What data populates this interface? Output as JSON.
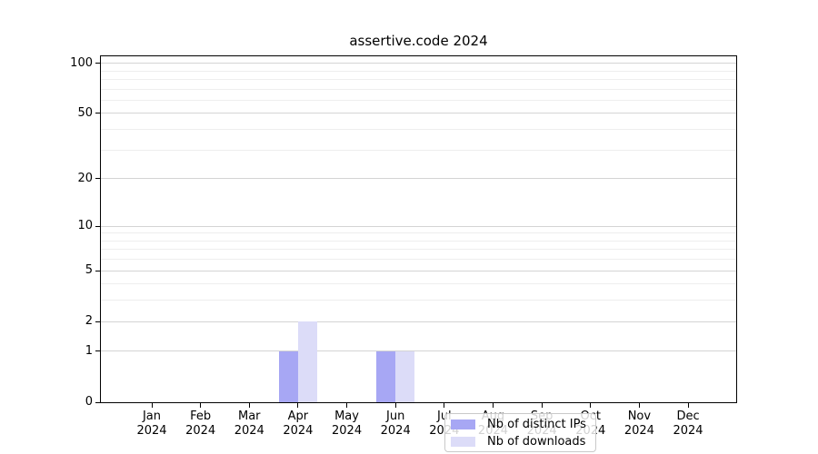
{
  "chart_data": {
    "type": "bar",
    "title": "assertive.code 2024",
    "categories": [
      "Jan",
      "Feb",
      "Mar",
      "Apr",
      "May",
      "Jun",
      "Jul",
      "Aug",
      "Sep",
      "Oct",
      "Nov",
      "Dec"
    ],
    "x_year": "2024",
    "series": [
      {
        "name": "Nb of distinct IPs",
        "color": "#a7a7f4",
        "values": [
          0,
          0,
          0,
          1,
          0,
          1,
          0,
          0,
          0,
          0,
          0,
          0
        ]
      },
      {
        "name": "Nb of downloads",
        "color": "#dcdcf8",
        "values": [
          0,
          0,
          0,
          2,
          0,
          1,
          0,
          0,
          0,
          0,
          0,
          0
        ]
      }
    ],
    "y_axis": {
      "scale": "log1p",
      "ylim": [
        0,
        110
      ],
      "ticks_major": [
        0,
        1,
        2,
        5,
        10,
        20,
        50,
        100
      ],
      "ticks_major_labels": [
        "0",
        "1",
        "2",
        "5",
        "10",
        "20",
        "50",
        "100"
      ],
      "ticks_minor": [
        3,
        4,
        6,
        7,
        8,
        9,
        30,
        40,
        60,
        70,
        80,
        90
      ]
    },
    "legend_position": "lower-center",
    "grid": "both",
    "colors": {
      "grid_major": "#d4d4d4",
      "grid_minor": "#eeeeee",
      "spine": "#000000",
      "background": "#ffffff"
    }
  }
}
